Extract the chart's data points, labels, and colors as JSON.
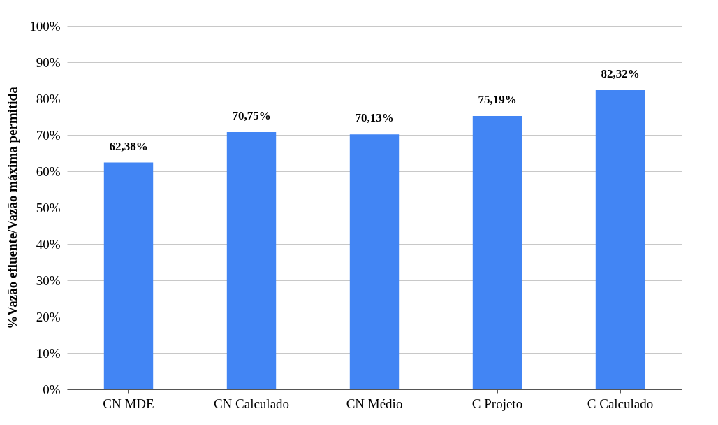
{
  "chart_data": {
    "type": "bar",
    "ylabel": "%Vazão efluente/Vazão máxima permitida",
    "categories": [
      "CN MDE",
      "CN Calculado",
      "CN Médio",
      "C Projeto",
      "C Calculado"
    ],
    "values": [
      62.38,
      70.75,
      70.13,
      75.19,
      82.32
    ],
    "value_labels": [
      "62,38%",
      "70,75%",
      "70,13%",
      "75,19%",
      "82,32%"
    ],
    "color": "#4285f4",
    "ylim": [
      0,
      100
    ],
    "yticks": [
      {
        "value": 0,
        "label": "0%"
      },
      {
        "value": 10,
        "label": "10%"
      },
      {
        "value": 20,
        "label": "20%"
      },
      {
        "value": 30,
        "label": "30%"
      },
      {
        "value": 40,
        "label": "40%"
      },
      {
        "value": 50,
        "label": "50%"
      },
      {
        "value": 60,
        "label": "60%"
      },
      {
        "value": 70,
        "label": "70%"
      },
      {
        "value": 80,
        "label": "80%"
      },
      {
        "value": 90,
        "label": "90%"
      },
      {
        "value": 100,
        "label": "100%"
      }
    ],
    "grid": "y"
  }
}
